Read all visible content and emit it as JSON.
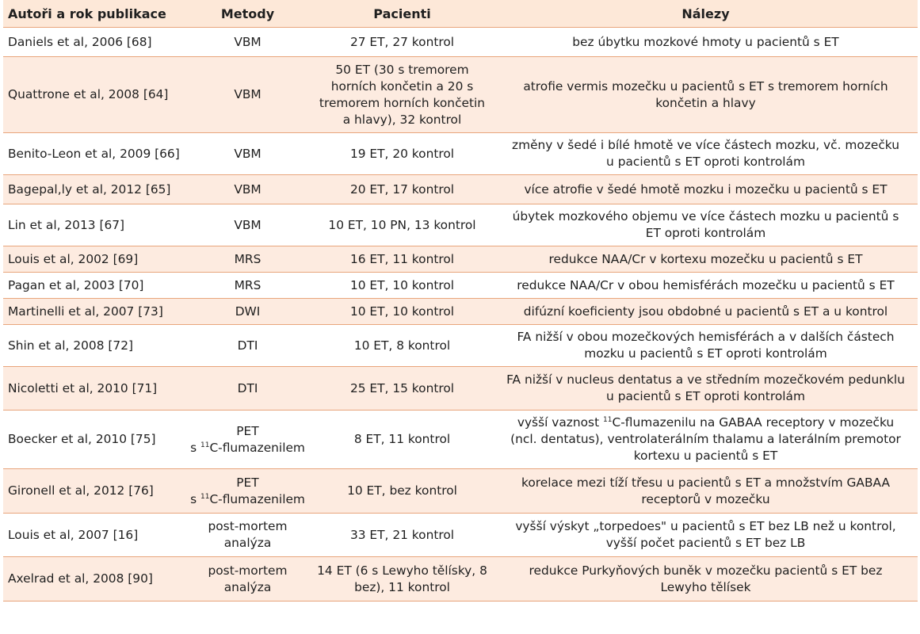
{
  "header": {
    "authors": "Autoři a rok publikace",
    "methods": "Metody",
    "patients": "Pacienti",
    "findings": "Nálezy"
  },
  "rows": [
    {
      "author": "Daniels et al, 2006 [68]",
      "method": "VBM",
      "patients": "27 ET, 27 kontrol",
      "findings": "bez úbytku mozkové hmoty u pacientů s ET"
    },
    {
      "author": "Quattrone et al, 2008 [64]",
      "method": "VBM",
      "patients": "50 ET (30 s tremorem horních končetin a 20 s tremorem horních končetin a hlavy), 32 kontrol",
      "findings": "atrofie vermis mozečku u pacientů s ET s tremorem horních končetin a hlavy"
    },
    {
      "author": "Benito-Leon et al, 2009 [66]",
      "method": "VBM",
      "patients": "19 ET, 20 kontrol",
      "findings": "změny v šedé i bílé hmotě ve více částech mozku, vč. mozečku u pacientů s ET oproti kontrolám"
    },
    {
      "author": "Bagepal,ly et al, 2012 [65]",
      "method": "VBM",
      "patients": "20 ET, 17 kontrol",
      "findings": "více atrofie v šedé hmotě mozku i mozečku u pacientů s ET"
    },
    {
      "author": "Lin et al, 2013 [67]",
      "method": "VBM",
      "patients": "10 ET, 10 PN, 13 kontrol",
      "findings": "úbytek mozkového objemu ve více částech mozku u pacientů s ET oproti kontrolám"
    },
    {
      "author": "Louis et al, 2002 [69]",
      "method": "MRS",
      "patients": "16 ET, 11 kontrol",
      "findings": "redukce NAA/Cr v kortexu mozečku u pacientů s ET"
    },
    {
      "author": "Pagan et al, 2003 [70]",
      "method": "MRS",
      "patients": "10 ET, 10 kontrol",
      "findings": "redukce NAA/Cr v obou hemisférách mozečku u pacientů s ET"
    },
    {
      "author": "Martinelli et al, 2007 [73]",
      "method": "DWI",
      "patients": "10 ET, 10 kontrol",
      "findings": "difúzní koeficienty jsou obdobné u pacientů s ET a u kontrol"
    },
    {
      "author": "Shin et al, 2008 [72]",
      "method": "DTI",
      "patients": "10 ET, 8 kontrol",
      "findings": "FA nižší v obou mozečkových hemisférách a v dalších částech mozku u pacientů s ET oproti kontrolám"
    },
    {
      "author": "Nicoletti et al, 2010 [71]",
      "method": "DTI",
      "patients": "25 ET, 15 kontrol",
      "findings": "FA nižší v nucleus dentatus a ve středním mozečkovém pedunklu u pacientů s ET oproti kontrolám"
    },
    {
      "author": "Boecker et al, 2010 [75]",
      "method_line1": "PET",
      "method_sup": "11",
      "method_line2": "C-flumazenilem",
      "method_prefix": "s ",
      "patients": "8 ET, 11 kontrol",
      "findings_prefix": "vyšší vaznost ",
      "findings_sup": "11",
      "findings_rest": "C-flumazenilu na GABAA receptory v mozečku (ncl. dentatus), ventrolaterálním thalamu a laterálním premotor kortexu u pacientů s ET"
    },
    {
      "author": "Gironell et al, 2012 [76]",
      "method_line1": "PET",
      "method_sup": "11",
      "method_line2": "C-flumazenilem",
      "method_prefix": "s ",
      "patients": "10 ET, bez kontrol",
      "findings": "korelace mezi tíží třesu u pacientů s ET a množstvím GABAA receptorů v mozečku"
    },
    {
      "author": "Louis et al, 2007 [16]",
      "method": "post-mortem analýza",
      "patients": "33 ET, 21 kontrol",
      "findings": "vyšší výskyt „torpedoes\" u pacientů s ET bez LB než u kontrol, vyšší počet pacientů s ET bez LB"
    },
    {
      "author": "Axelrad et al, 2008 [90]",
      "method": "post-mortem analýza",
      "patients": "14 ET (6 s Lewyho tělísky, 8 bez), 11 kontrol",
      "findings": "redukce Purkyňových buněk v mozečku pacientů s ET bez Lewyho tělísek"
    }
  ]
}
